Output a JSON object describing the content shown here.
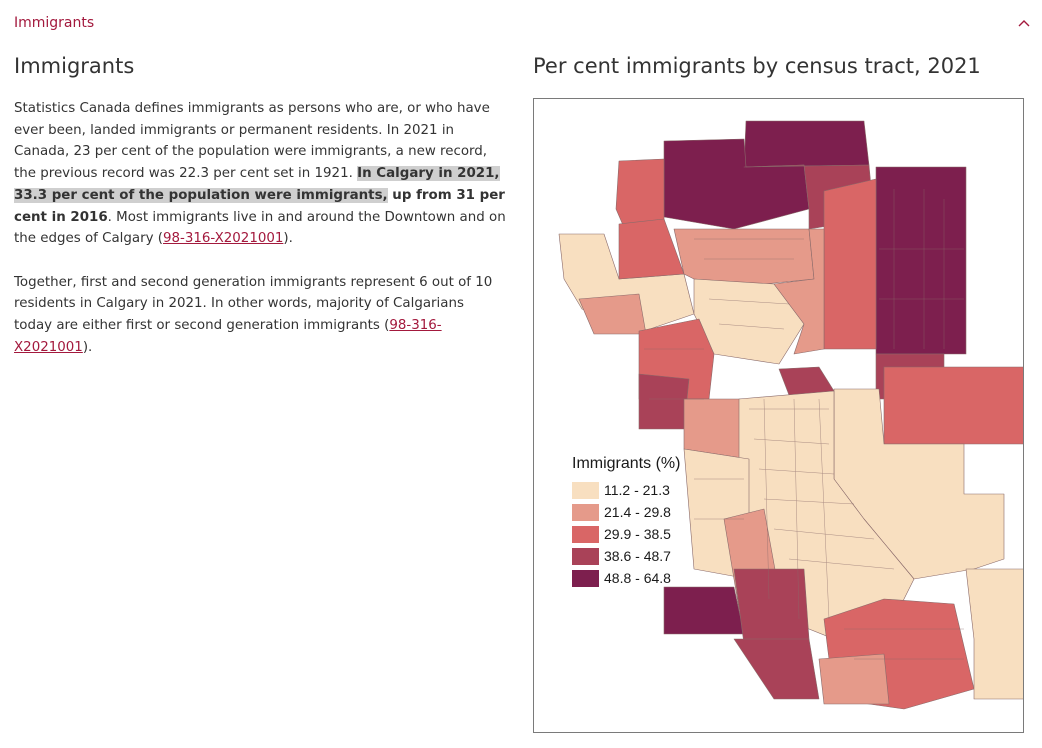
{
  "accordion": {
    "title": "Immigrants"
  },
  "section": {
    "heading": "Immigrants"
  },
  "paragraph1": {
    "part1": "Statistics Canada defines immigrants as persons who are, or who have ever been, landed immigrants or permanent residents. In 2021 in Canada, 23 per cent of the population were immigrants, a new record, the previous record was 22.3 per cent set in 1921. ",
    "highlight": "In Calgary in 2021, 33.3 per cent of the population were immigrants,",
    "bold_rest": " up from 31 per cent in 2016",
    "part2": ". Most immigrants live in and around the Downtown and on the edges of Calgary (",
    "link": "98-316-X2021001",
    "end": ")."
  },
  "paragraph2": {
    "part1": "Together, first and second generation immigrants represent 6 out of 10 residents in Calgary in 2021. In other words, majority of Calgarians today are either first or second generation immigrants (",
    "link": "98-316-X2021001",
    "end": ")."
  },
  "map": {
    "title": "Per cent immigrants by census tract, 2021",
    "legend_title": "Immigrants (%)",
    "legend": [
      {
        "label": "11.2 - 21.3",
        "color": "#f8dfc0"
      },
      {
        "label": "21.4 - 29.8",
        "color": "#e59a8a"
      },
      {
        "label": "29.9 - 38.5",
        "color": "#d96666"
      },
      {
        "label": "38.6 - 48.7",
        "color": "#a94258"
      },
      {
        "label": "48.8 - 64.8",
        "color": "#7d1f4e"
      }
    ]
  },
  "icons": {
    "collapse": "chevron-up-icon"
  }
}
